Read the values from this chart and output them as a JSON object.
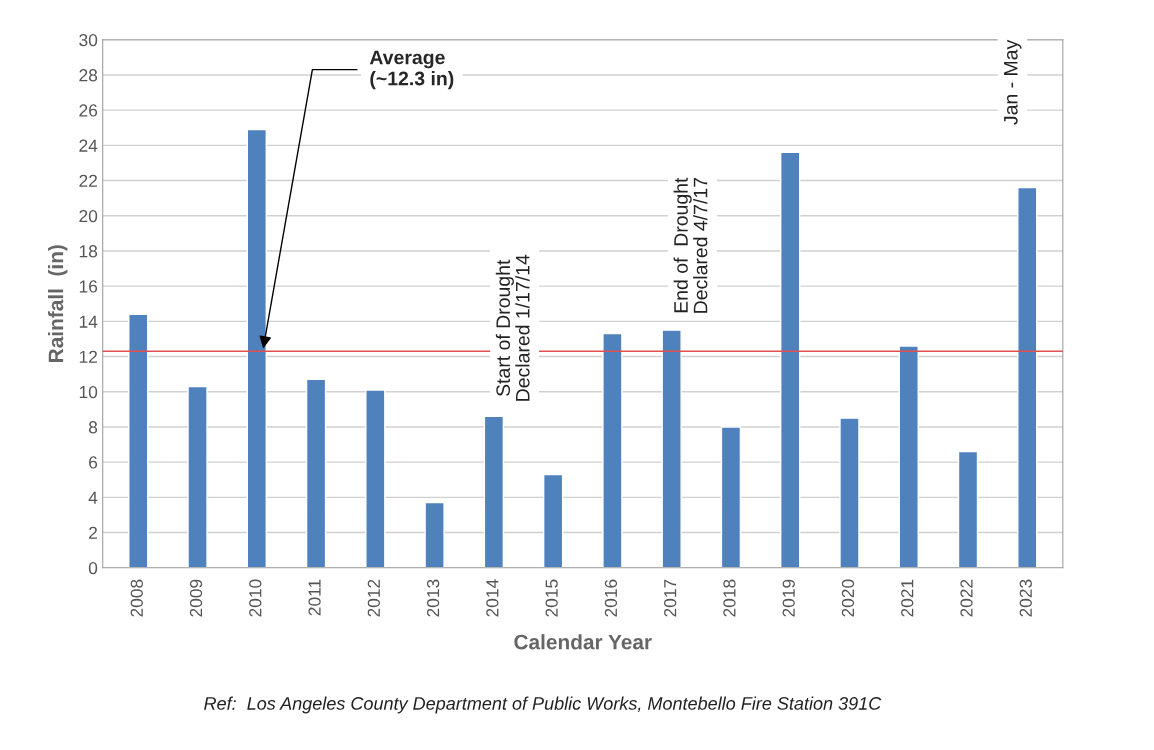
{
  "chart_data": {
    "type": "bar",
    "xlabel": "Calendar Year",
    "ylabel": "Rainfall  (in)",
    "categories": [
      "2008",
      "2009",
      "2010",
      "2011",
      "2012",
      "2013",
      "2014",
      "2015",
      "2016",
      "2017",
      "2018",
      "2019",
      "2020",
      "2021",
      "2022",
      "2023"
    ],
    "values": [
      14.4,
      10.3,
      24.9,
      10.7,
      10.1,
      3.7,
      8.6,
      5.3,
      13.3,
      13.5,
      8.0,
      23.6,
      8.5,
      12.6,
      6.6,
      21.6
    ],
    "color": "#4f81bd",
    "ylim": [
      0,
      30
    ],
    "yticks": [
      0,
      2,
      4,
      6,
      8,
      10,
      12,
      14,
      16,
      18,
      20,
      22,
      24,
      26,
      28,
      30
    ],
    "grid": "y",
    "ref_lines": [
      {
        "axis": "y",
        "value": 12.3,
        "label": "Average\n(~12.3 in)",
        "color": "#e05050"
      }
    ],
    "annotations": [
      "Start of Drought\nDeclared 1/17/14",
      "End of  Drought\nDeclared 4/7/17",
      "Jan - May",
      "Ref:  Los Angeles County Department of Public Works, Montebello Fire Station 391C"
    ]
  }
}
